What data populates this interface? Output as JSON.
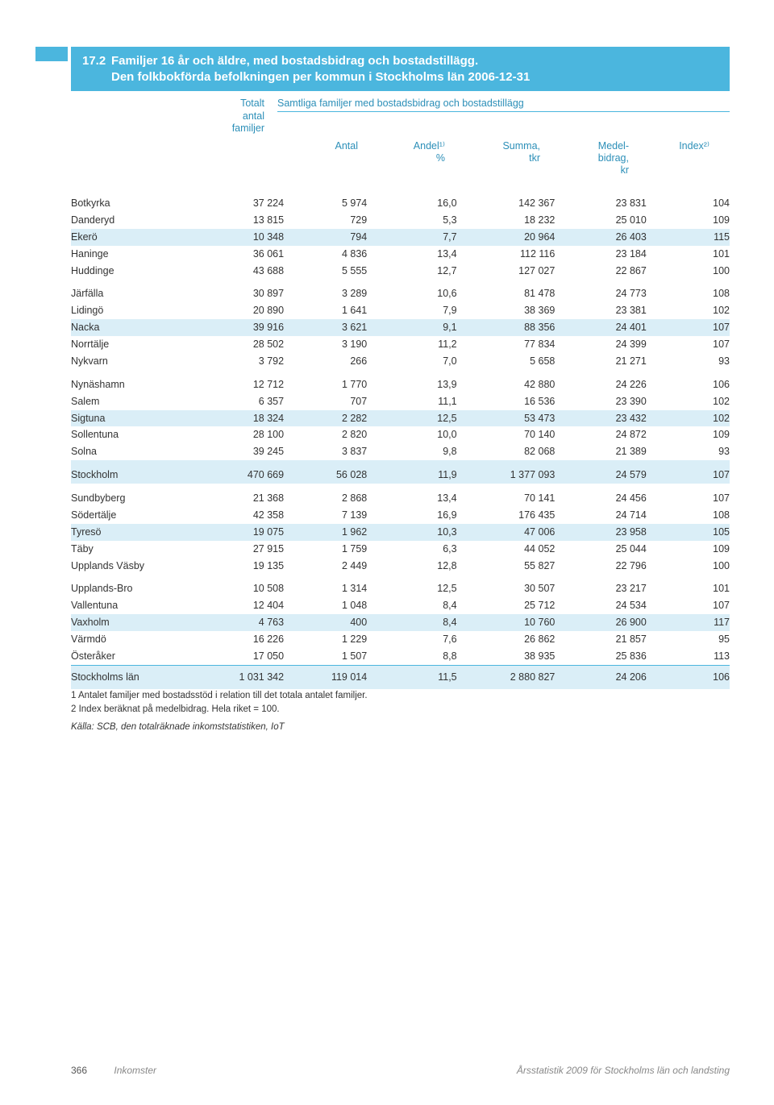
{
  "header": {
    "number": "17.2",
    "title_line1": "Familjer 16 år och äldre, med bostadsbidrag och bostadstillägg.",
    "title_line2": "Den folkbokförda befolkningen per kommun i Stockholms län 2006-12-31",
    "col_total_l1": "Totalt",
    "col_total_l2": "antal",
    "col_total_l3": "familjer",
    "spanner": "Samtliga familjer med bostadsbidrag och bostadstillägg",
    "col_antal": "Antal",
    "col_andel_l1": "Andel¹⁾",
    "col_andel_l2": "%",
    "col_summa_l1": "Summa,",
    "col_summa_l2": "tkr",
    "col_medel_l1": "Medel-",
    "col_medel_l2": "bidrag,",
    "col_medel_l3": "kr",
    "col_index": "Index²⁾"
  },
  "rows": [
    {
      "label": "Botkyrka",
      "v": [
        "37 224",
        "5 974",
        "16,0",
        "142 367",
        "23 831",
        "104"
      ],
      "g": true
    },
    {
      "label": "Danderyd",
      "v": [
        "13 815",
        "729",
        "5,3",
        "18 232",
        "25 010",
        "109"
      ]
    },
    {
      "label": "Ekerö",
      "v": [
        "10 348",
        "794",
        "7,7",
        "20 964",
        "26 403",
        "115"
      ],
      "s": true
    },
    {
      "label": "Haninge",
      "v": [
        "36 061",
        "4 836",
        "13,4",
        "112 116",
        "23 184",
        "101"
      ]
    },
    {
      "label": "Huddinge",
      "v": [
        "43 688",
        "5 555",
        "12,7",
        "127 027",
        "22 867",
        "100"
      ]
    },
    {
      "label": "Järfälla",
      "v": [
        "30 897",
        "3 289",
        "10,6",
        "81 478",
        "24 773",
        "108"
      ],
      "g": true
    },
    {
      "label": "Lidingö",
      "v": [
        "20 890",
        "1 641",
        "7,9",
        "38 369",
        "23 381",
        "102"
      ]
    },
    {
      "label": "Nacka",
      "v": [
        "39 916",
        "3 621",
        "9,1",
        "88 356",
        "24 401",
        "107"
      ],
      "s": true
    },
    {
      "label": "Norrtälje",
      "v": [
        "28 502",
        "3 190",
        "11,2",
        "77 834",
        "24 399",
        "107"
      ]
    },
    {
      "label": "Nykvarn",
      "v": [
        "3 792",
        "266",
        "7,0",
        "5 658",
        "21 271",
        "93"
      ]
    },
    {
      "label": "Nynäshamn",
      "v": [
        "12 712",
        "1 770",
        "13,9",
        "42 880",
        "24 226",
        "106"
      ],
      "g": true
    },
    {
      "label": "Salem",
      "v": [
        "6 357",
        "707",
        "11,1",
        "16 536",
        "23 390",
        "102"
      ]
    },
    {
      "label": "Sigtuna",
      "v": [
        "18 324",
        "2 282",
        "12,5",
        "53 473",
        "23 432",
        "102"
      ],
      "s": true
    },
    {
      "label": "Sollentuna",
      "v": [
        "28 100",
        "2 820",
        "10,0",
        "70 140",
        "24 872",
        "109"
      ]
    },
    {
      "label": "Solna",
      "v": [
        "39 245",
        "3 837",
        "9,8",
        "82 068",
        "21 389",
        "93"
      ]
    },
    {
      "label": "Stockholm",
      "v": [
        "470 669",
        "56 028",
        "11,9",
        "1 377 093",
        "24 579",
        "107"
      ],
      "g": true,
      "s": true
    },
    {
      "label": "Sundbyberg",
      "v": [
        "21 368",
        "2 868",
        "13,4",
        "70 141",
        "24 456",
        "107"
      ],
      "g": true
    },
    {
      "label": "Södertälje",
      "v": [
        "42 358",
        "7 139",
        "16,9",
        "176 435",
        "24 714",
        "108"
      ]
    },
    {
      "label": "Tyresö",
      "v": [
        "19 075",
        "1 962",
        "10,3",
        "47 006",
        "23 958",
        "105"
      ],
      "s": true
    },
    {
      "label": "Täby",
      "v": [
        "27 915",
        "1 759",
        "6,3",
        "44 052",
        "25 044",
        "109"
      ]
    },
    {
      "label": "Upplands Väsby",
      "v": [
        "19 135",
        "2 449",
        "12,8",
        "55 827",
        "22 796",
        "100"
      ]
    },
    {
      "label": "Upplands-Bro",
      "v": [
        "10 508",
        "1 314",
        "12,5",
        "30 507",
        "23 217",
        "101"
      ],
      "g": true
    },
    {
      "label": "Vallentuna",
      "v": [
        "12 404",
        "1 048",
        "8,4",
        "25 712",
        "24 534",
        "107"
      ]
    },
    {
      "label": "Vaxholm",
      "v": [
        "4 763",
        "400",
        "8,4",
        "10 760",
        "26 900",
        "117"
      ],
      "s": true
    },
    {
      "label": "Värmdö",
      "v": [
        "16 226",
        "1 229",
        "7,6",
        "26 862",
        "21 857",
        "95"
      ]
    },
    {
      "label": "Österåker",
      "v": [
        "17 050",
        "1 507",
        "8,8",
        "38 935",
        "25 836",
        "113"
      ]
    }
  ],
  "summary": {
    "label": "Stockholms län",
    "v": [
      "1 031 342",
      "119 014",
      "11,5",
      "2 880 827",
      "24 206",
      "106"
    ]
  },
  "footnotes": {
    "n1": "1 Antalet familjer med bostadsstöd i relation till det totala antalet familjer.",
    "n2": "2 Index beräknat på medelbidrag. Hela riket = 100.",
    "source": "Källa: SCB, den totalräknade inkomststatistiken, IoT"
  },
  "footer": {
    "page": "366",
    "section": "Inkomster",
    "pub": "Årsstatistik 2009 för Stockholms län och landsting"
  },
  "colors": {
    "header_bg": "#4bb6de",
    "stripe_bg": "#daeef7",
    "header_text": "#2c8fb8"
  }
}
